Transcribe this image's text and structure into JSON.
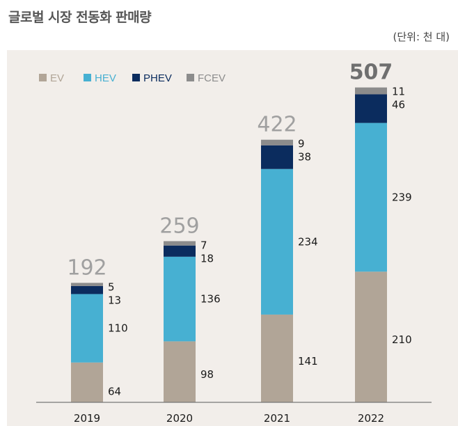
{
  "header": {
    "title": "글로벌 시장 전동화 판매량",
    "unit": "(단위: 천 대)"
  },
  "colors": {
    "EV": "#b1a597",
    "HEV": "#47b0d2",
    "PHEV": "#0b2c5e",
    "FCEV": "#8c8c8c",
    "total_normal": "#a0a0a0",
    "total_highlight": "#6f6f6f",
    "axis": "#777777",
    "panel": "#f2eeea"
  },
  "chart_data": {
    "type": "bar",
    "stacked": true,
    "categories": [
      "2019",
      "2020",
      "2021",
      "2022"
    ],
    "series": [
      {
        "name": "EV",
        "values": [
          64,
          98,
          141,
          210
        ]
      },
      {
        "name": "HEV",
        "values": [
          110,
          136,
          234,
          239
        ]
      },
      {
        "name": "PHEV",
        "values": [
          13,
          18,
          38,
          46
        ]
      },
      {
        "name": "FCEV",
        "values": [
          5,
          7,
          9,
          11
        ]
      }
    ],
    "totals": [
      192,
      259,
      422,
      507
    ],
    "legend": [
      "EV",
      "HEV",
      "PHEV",
      "FCEV"
    ],
    "legend_position": "top-left",
    "ylim": [
      0,
      590
    ],
    "grid": false
  }
}
